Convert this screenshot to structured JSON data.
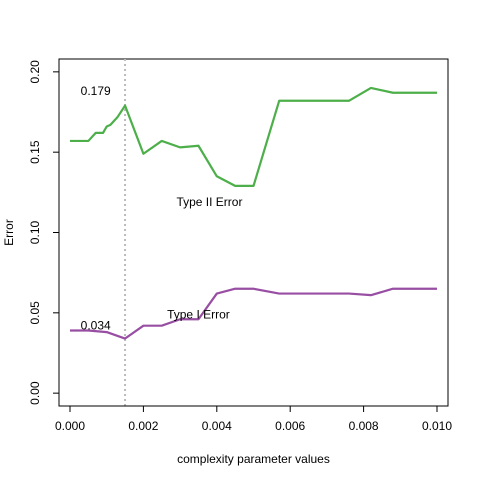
{
  "chart_data": {
    "type": "line",
    "title": "",
    "xlabel": "complexity parameter values",
    "ylabel": "Error",
    "xlim": [
      -0.0003,
      0.0103
    ],
    "ylim": [
      -0.008,
      0.208
    ],
    "x_ticks": [
      0.0,
      0.002,
      0.004,
      0.006,
      0.008,
      0.01
    ],
    "x_tick_labels": [
      "0.000",
      "0.002",
      "0.004",
      "0.006",
      "0.008",
      "0.010"
    ],
    "y_ticks": [
      0.0,
      0.05,
      0.1,
      0.15,
      0.2
    ],
    "y_tick_labels": [
      "0.00",
      "0.05",
      "0.10",
      "0.15",
      "0.20"
    ],
    "grid": false,
    "legend": "none",
    "series": [
      {
        "name": "Type II Error",
        "color": "#4daf4a",
        "x": [
          0.0,
          0.0005,
          0.0007,
          0.0009,
          0.001,
          0.0011,
          0.0013,
          0.0015,
          0.002,
          0.0025,
          0.003,
          0.0035,
          0.004,
          0.0045,
          0.005,
          0.0057,
          0.007,
          0.0076,
          0.0082,
          0.0088,
          0.01
        ],
        "y": [
          0.157,
          0.157,
          0.162,
          0.162,
          0.166,
          0.167,
          0.172,
          0.179,
          0.149,
          0.157,
          0.153,
          0.154,
          0.135,
          0.129,
          0.129,
          0.182,
          0.182,
          0.182,
          0.19,
          0.187,
          0.187
        ]
      },
      {
        "name": "Type I Error",
        "color": "#984ea3",
        "x": [
          0.0,
          0.0005,
          0.001,
          0.0015,
          0.002,
          0.0025,
          0.003,
          0.0035,
          0.004,
          0.0045,
          0.005,
          0.0057,
          0.007,
          0.0076,
          0.0082,
          0.0088,
          0.01
        ],
        "y": [
          0.039,
          0.039,
          0.038,
          0.034,
          0.042,
          0.042,
          0.046,
          0.046,
          0.062,
          0.065,
          0.065,
          0.062,
          0.062,
          0.062,
          0.061,
          0.065,
          0.065
        ]
      }
    ],
    "vline": {
      "x": 0.0015,
      "color": "#bbbbbb"
    },
    "annotations": [
      {
        "text": "0.179",
        "x": 0.0007,
        "y": 0.188
      },
      {
        "text": "0.034",
        "x": 0.0007,
        "y": 0.042
      },
      {
        "text": "Type II Error",
        "x": 0.0038,
        "y": 0.119
      },
      {
        "text": "Type I Error",
        "x": 0.0035,
        "y": 0.049
      }
    ]
  }
}
